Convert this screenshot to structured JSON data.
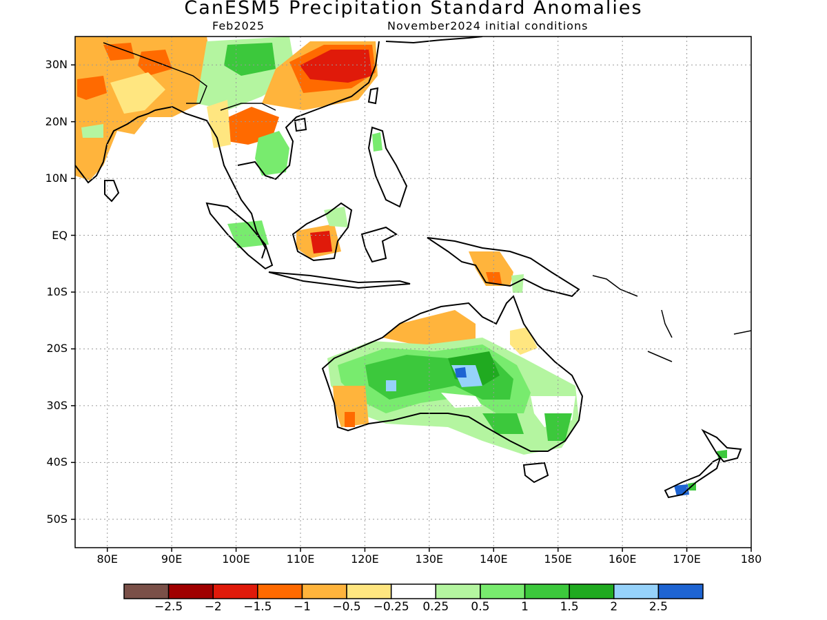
{
  "title": "CanESM5 Precipitation Standard Anomalies",
  "subtitle_left": "Feb2025",
  "subtitle_right": "November2024 initial conditions",
  "map": {
    "lon_range": [
      75,
      180
    ],
    "lat_range": [
      -55,
      35
    ],
    "lat_labels": [
      "30N",
      "20N",
      "10N",
      "EQ",
      "10S",
      "20S",
      "30S",
      "40S",
      "50S"
    ],
    "lat_values": [
      30,
      20,
      10,
      0,
      -10,
      -20,
      -30,
      -40,
      -50
    ],
    "lon_labels": [
      "80E",
      "90E",
      "100E",
      "110E",
      "120E",
      "130E",
      "140E",
      "150E",
      "160E",
      "170E",
      "180"
    ],
    "lon_values": [
      80,
      90,
      100,
      110,
      120,
      130,
      140,
      150,
      160,
      170,
      180
    ],
    "grid": "dotted"
  },
  "colorbar": {
    "colors": [
      "#7a5048",
      "#a00000",
      "#e01a0a",
      "#ff6a00",
      "#ffb43c",
      "#ffe680",
      "#ffffff",
      "#b4f5a0",
      "#78eb6e",
      "#3cc83c",
      "#20aa20",
      "#96d2fa",
      "#1e64d2"
    ],
    "labels": [
      "−2.5",
      "−2",
      "−1.5",
      "−1",
      "−0.5",
      "−0.25",
      "0.25",
      "0.5",
      "1",
      "1.5",
      "2",
      "2.5"
    ]
  }
}
